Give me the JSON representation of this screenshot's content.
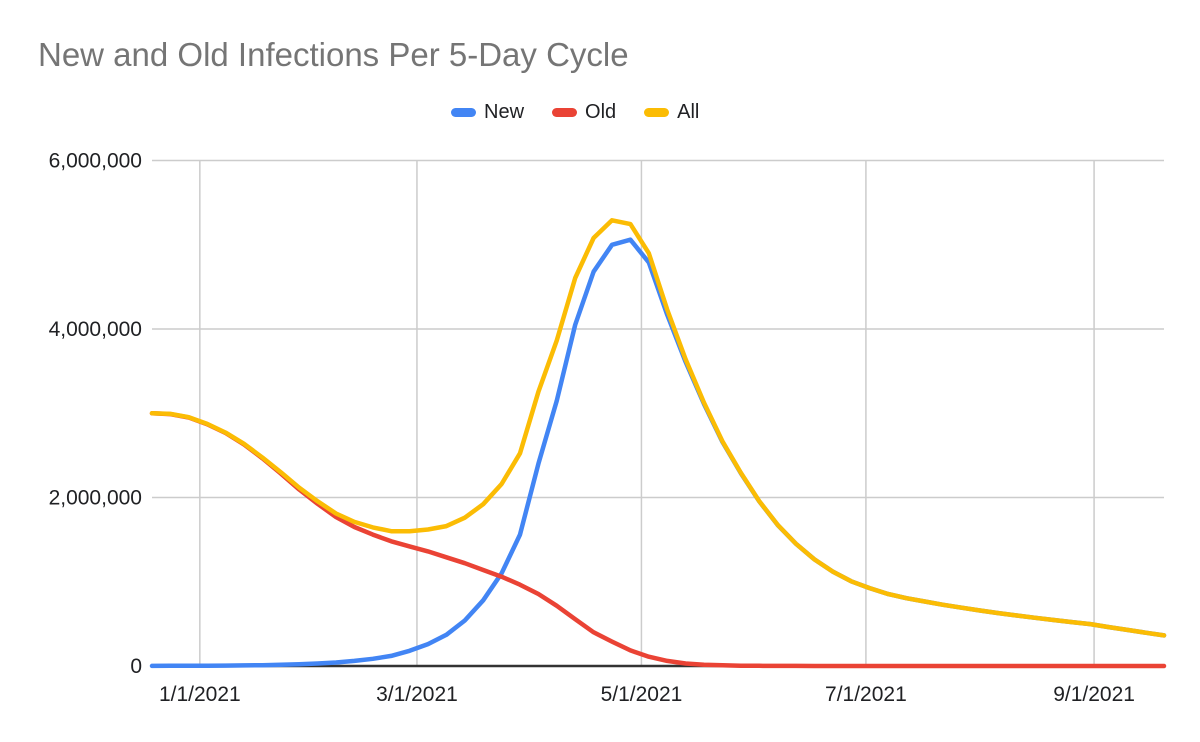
{
  "title": "New and Old Infections Per 5-Day Cycle",
  "chart_data": {
    "type": "line",
    "title": "New and Old Infections Per 5-Day Cycle",
    "xlabel": "",
    "ylabel": "",
    "legend_position": "top",
    "grid": true,
    "ylim": [
      0,
      6000000
    ],
    "y_ticks": [
      {
        "value": 0,
        "label": "0"
      },
      {
        "value": 2000000,
        "label": "2,000,000"
      },
      {
        "value": 4000000,
        "label": "4,000,000"
      },
      {
        "value": 6000000,
        "label": "6,000,000"
      }
    ],
    "x_domain_days": [
      0,
      275
    ],
    "interval_days": 5,
    "x_ticks": [
      {
        "day": 13,
        "label": "1/1/2021"
      },
      {
        "day": 72,
        "label": "3/1/2021"
      },
      {
        "day": 133,
        "label": "5/1/2021"
      },
      {
        "day": 194,
        "label": "7/1/2021"
      },
      {
        "day": 256,
        "label": "9/1/2021"
      }
    ],
    "dates": [
      "12/19/2020",
      "12/24/2020",
      "12/29/2020",
      "1/3/2021",
      "1/8/2021",
      "1/13/2021",
      "1/18/2021",
      "1/23/2021",
      "1/28/2021",
      "2/2/2021",
      "2/7/2021",
      "2/12/2021",
      "2/17/2021",
      "2/22/2021",
      "2/27/2021",
      "3/4/2021",
      "3/9/2021",
      "3/14/2021",
      "3/19/2021",
      "3/24/2021",
      "3/29/2021",
      "4/3/2021",
      "4/8/2021",
      "4/13/2021",
      "4/18/2021",
      "4/23/2021",
      "4/28/2021",
      "5/3/2021",
      "5/8/2021",
      "5/13/2021",
      "5/18/2021",
      "5/23/2021",
      "5/28/2021",
      "6/2/2021",
      "6/7/2021",
      "6/12/2021",
      "6/17/2021",
      "6/22/2021",
      "6/27/2021",
      "7/2/2021",
      "7/7/2021",
      "7/12/2021",
      "7/17/2021",
      "7/22/2021",
      "7/27/2021",
      "8/1/2021",
      "8/6/2021",
      "8/11/2021",
      "8/16/2021",
      "8/21/2021",
      "8/26/2021",
      "8/31/2021",
      "9/5/2021",
      "9/10/2021",
      "9/15/2021",
      "9/20/2021"
    ],
    "series": [
      {
        "name": "New",
        "color": "#4285F4",
        "values": [
          1000,
          2000,
          3000,
          4000,
          5000,
          7000,
          10000,
          15000,
          21000,
          30000,
          42000,
          60000,
          85000,
          120000,
          180000,
          260000,
          370000,
          540000,
          780000,
          1100000,
          1560000,
          2400000,
          3150000,
          4050000,
          4680000,
          5000000,
          5060000,
          4790000,
          4170000,
          3610000,
          3110000,
          2660000,
          2290000,
          1955000,
          1675000,
          1450000,
          1265000,
          1120000,
          1005000,
          925000,
          855000,
          805000,
          765000,
          727000,
          692000,
          659000,
          628000,
          599000,
          572000,
          546000,
          521000,
          497000,
          462000,
          428000,
          395000,
          363000
        ]
      },
      {
        "name": "Old",
        "color": "#EA4335",
        "values": [
          3000000,
          2990000,
          2950000,
          2870000,
          2765000,
          2630000,
          2465000,
          2285000,
          2095000,
          1925000,
          1768000,
          1650000,
          1560000,
          1480000,
          1420000,
          1360000,
          1290000,
          1220000,
          1140000,
          1060000,
          965000,
          855000,
          715000,
          555000,
          400000,
          290000,
          185000,
          110000,
          60000,
          30000,
          15000,
          8000,
          4000,
          2000,
          1000,
          1000,
          0,
          0,
          0,
          0,
          0,
          0,
          0,
          0,
          0,
          0,
          0,
          0,
          0,
          0,
          0,
          0,
          0,
          0,
          0,
          0
        ]
      },
      {
        "name": "All",
        "color": "#FBBC04",
        "values": [
          3001000,
          2992000,
          2953000,
          2874000,
          2770000,
          2637000,
          2475000,
          2300000,
          2116000,
          1955000,
          1810000,
          1710000,
          1645000,
          1600000,
          1600000,
          1620000,
          1660000,
          1760000,
          1920000,
          2160000,
          2525000,
          3255000,
          3865000,
          4605000,
          5080000,
          5290000,
          5245000,
          4900000,
          4230000,
          3640000,
          3125000,
          2668000,
          2294000,
          1957000,
          1676000,
          1451000,
          1265000,
          1120000,
          1005000,
          925000,
          855000,
          805000,
          765000,
          727000,
          692000,
          659000,
          628000,
          599000,
          572000,
          546000,
          521000,
          497000,
          462000,
          428000,
          395000,
          363000
        ]
      }
    ],
    "colors": {
      "title_text": "#757575",
      "axis_label_text": "#202124",
      "grid": "#cccccc",
      "baseline": "#333333",
      "background": "#ffffff"
    }
  }
}
